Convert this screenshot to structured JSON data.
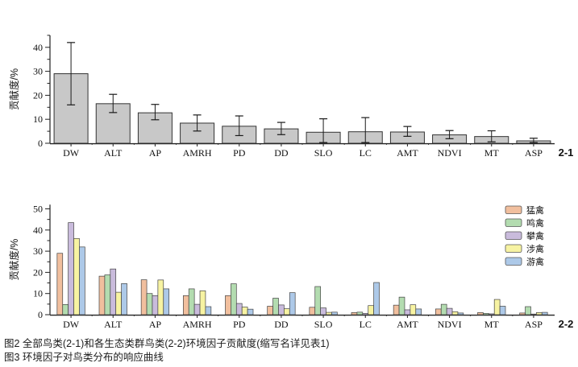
{
  "figure": {
    "caption_line1": "图2 全部鸟类(2-1)和各生态类群鸟类(2-2)环境因子贡献度(缩写名详见表1)",
    "caption_line2": "图3 环境因子对鸟类分布的响应曲线"
  },
  "chart_data": [
    {
      "type": "bar",
      "panel_label": "2-1",
      "title": "",
      "xlabel": "",
      "ylabel": "贡献度/%",
      "ylim": [
        0,
        45
      ],
      "yticks": [
        0,
        10,
        20,
        30,
        40
      ],
      "grid": false,
      "bar_color": "#c8c8c8",
      "bar_border_color": "#333333",
      "error_bar_color": "#1a1a1a",
      "categories": [
        "DW",
        "ALT",
        "AP",
        "AMRH",
        "PD",
        "DD",
        "SLO",
        "LC",
        "AMT",
        "NDVI",
        "MT",
        "ASP"
      ],
      "values": [
        29,
        16.5,
        12.7,
        8.4,
        7.1,
        6.0,
        4.6,
        4.8,
        4.7,
        3.5,
        2.8,
        1.0
      ],
      "error_low": [
        16,
        12.8,
        9.8,
        5.1,
        3.2,
        3.6,
        0.3,
        0.3,
        2.9,
        1.9,
        0.6,
        0.3
      ],
      "error_high": [
        42,
        20.4,
        16.2,
        11.8,
        11.4,
        8.7,
        10.2,
        10.7,
        7.0,
        5.3,
        5.2,
        2.1
      ]
    },
    {
      "type": "bar",
      "panel_label": "2-2",
      "title": "",
      "xlabel": "",
      "ylabel": "贡献度/%",
      "ylim": [
        0,
        52
      ],
      "yticks": [
        0,
        10,
        20,
        30,
        40,
        50
      ],
      "grid": false,
      "legend_position": "upper right",
      "bar_border_color": "#444444",
      "categories": [
        "DW",
        "ALT",
        "AP",
        "AMRH",
        "PD",
        "DD",
        "SLO",
        "LC",
        "AMT",
        "NDVI",
        "MT",
        "ASP"
      ],
      "series": [
        {
          "name": "猛禽",
          "color": "#f1bf9e",
          "values": [
            29.0,
            18.2,
            16.5,
            9.0,
            9.0,
            4.0,
            3.5,
            1.0,
            4.5,
            2.7,
            1.0,
            0.8
          ]
        },
        {
          "name": "鸣禽",
          "color": "#b3dcb0",
          "values": [
            4.8,
            18.8,
            10.0,
            12.2,
            14.6,
            7.8,
            13.3,
            1.2,
            8.3,
            4.9,
            0.6,
            3.8
          ]
        },
        {
          "name": "攀禽",
          "color": "#c9bbdc",
          "values": [
            43.5,
            21.6,
            9.0,
            4.9,
            5.3,
            4.6,
            3.2,
            0.6,
            2.3,
            3.0,
            0.4,
            0.3
          ]
        },
        {
          "name": "涉禽",
          "color": "#f7f3a2",
          "values": [
            36.0,
            10.6,
            16.4,
            11.3,
            3.6,
            2.8,
            1.1,
            4.3,
            4.7,
            1.4,
            7.2,
            1.0
          ]
        },
        {
          "name": "游禽",
          "color": "#adc9e8",
          "values": [
            32.0,
            14.7,
            12.2,
            3.8,
            2.6,
            10.4,
            1.2,
            15.2,
            2.7,
            0.8,
            4.0,
            1.1
          ]
        }
      ]
    }
  ]
}
